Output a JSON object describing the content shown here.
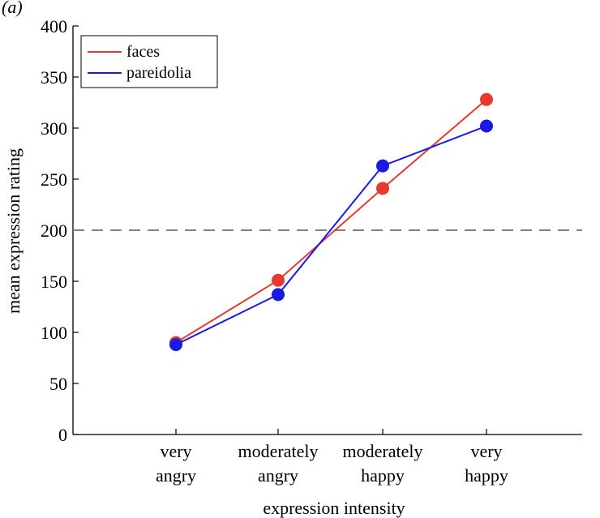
{
  "panel_label": "(a)",
  "chart_data": {
    "type": "line",
    "title": "",
    "xlabel": "expression intensity",
    "ylabel": "mean expression rating",
    "categories": [
      [
        "very",
        "angry"
      ],
      [
        "moderately",
        "angry"
      ],
      [
        "moderately",
        "happy"
      ],
      [
        "very",
        "happy"
      ]
    ],
    "ylim": [
      0,
      400
    ],
    "yticks": [
      0,
      50,
      100,
      150,
      200,
      250,
      300,
      350,
      400
    ],
    "reference_line": {
      "value": 200,
      "style": "dashed",
      "color": "#808080"
    },
    "legend_position": "top-left",
    "series": [
      {
        "name": "faces",
        "color": "#e8392e",
        "values": [
          90,
          151,
          241,
          328
        ]
      },
      {
        "name": "pareidolia",
        "color": "#1a1ae6",
        "values": [
          88,
          137,
          263,
          302
        ]
      }
    ]
  }
}
